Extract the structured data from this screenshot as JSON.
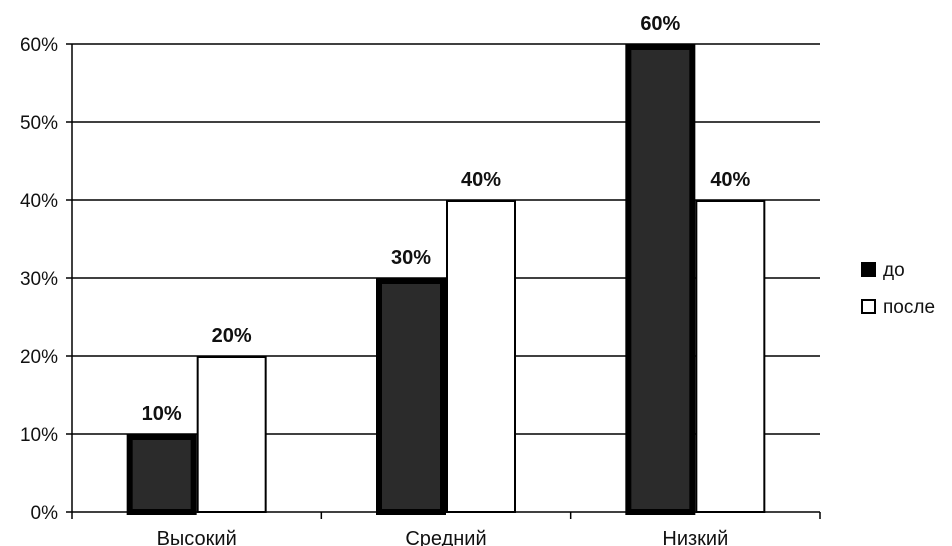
{
  "chart_data": {
    "type": "bar",
    "categories": [
      "Высокий",
      "Средний",
      "Низкий"
    ],
    "series": [
      {
        "name": "до",
        "values": [
          10,
          30,
          60
        ],
        "color": "#2b2b2b",
        "border": "#000000"
      },
      {
        "name": "после",
        "values": [
          20,
          40,
          40
        ],
        "color": "#ffffff",
        "border": "#000000"
      }
    ],
    "value_unit": "%",
    "ylim": [
      0,
      60
    ],
    "y_ticks": [
      0,
      10,
      20,
      30,
      40,
      50,
      60
    ],
    "y_tick_labels": [
      "0%",
      "10%",
      "20%",
      "30%",
      "40%",
      "50%",
      "60%"
    ],
    "data_labels": [
      [
        "10%",
        "30%",
        "60%"
      ],
      [
        "20%",
        "40%",
        "40%"
      ]
    ],
    "grid": true,
    "legend": "right",
    "title": "",
    "xlabel": "",
    "ylabel": ""
  }
}
